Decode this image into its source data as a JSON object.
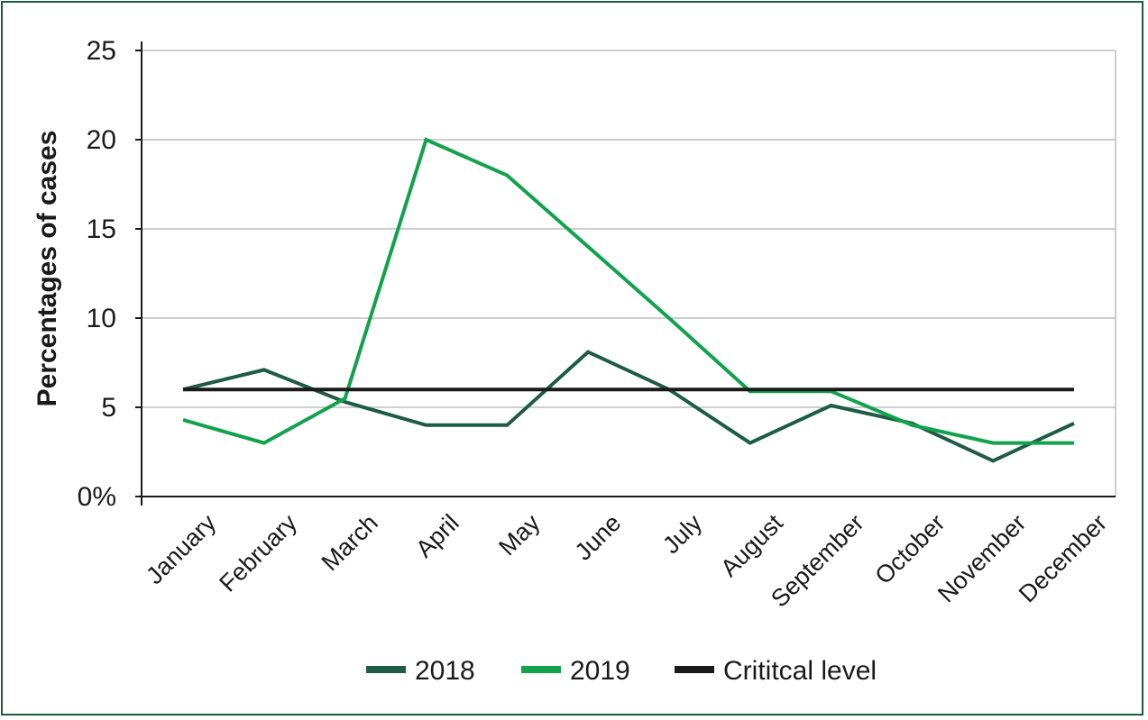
{
  "chart_data": {
    "type": "line",
    "title": "",
    "xlabel": "",
    "ylabel": "Percentages of cases",
    "categories": [
      "January",
      "February",
      "March",
      "April",
      "May",
      "June",
      "July",
      "August",
      "September",
      "October",
      "November",
      "December"
    ],
    "series": [
      {
        "name": "2018",
        "color": "#1f5b45",
        "values": [
          6,
          7.1,
          5.3,
          4,
          4,
          8.1,
          6,
          3,
          5.1,
          4.1,
          2,
          4.1
        ]
      },
      {
        "name": "2019",
        "color": "#12a24c",
        "values": [
          4.3,
          3,
          5.5,
          20,
          18,
          14,
          10,
          5.9,
          5.9,
          4,
          3,
          3
        ]
      },
      {
        "name": "Crititcal level",
        "color": "#1a1a1a",
        "values": [
          6,
          6,
          6,
          6,
          6,
          6,
          6,
          6,
          6,
          6,
          6,
          6
        ]
      }
    ],
    "yticks": [
      "0%",
      "5",
      "10",
      "15",
      "20",
      "25"
    ],
    "ylim": [
      0,
      25
    ],
    "grid": "horizontal",
    "legend_position": "bottom"
  }
}
